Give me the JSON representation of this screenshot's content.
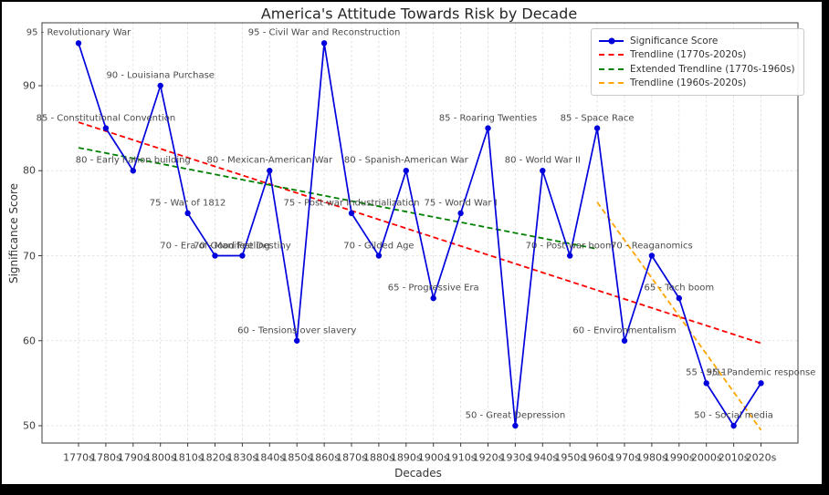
{
  "page": {
    "background": "#000000",
    "figure_background": "#ffffff"
  },
  "chart_data": {
    "type": "line",
    "title": "America's Attitude Towards Risk by Decade",
    "xlabel": "Decades",
    "ylabel": "Significance Score",
    "categories": [
      "1770s",
      "1780s",
      "1790s",
      "1800s",
      "1810s",
      "1820s",
      "1830s",
      "1840s",
      "1850s",
      "1860s",
      "1870s",
      "1880s",
      "1890s",
      "1900s",
      "1910s",
      "1920s",
      "1930s",
      "1940s",
      "1950s",
      "1960s",
      "1970s",
      "1980s",
      "1990s",
      "2000s",
      "2010s",
      "2020s"
    ],
    "y_ticks": [
      50,
      60,
      70,
      80,
      90
    ],
    "ylim": [
      47.7,
      97.4
    ],
    "grid": true,
    "series": [
      {
        "name": "Significance Score",
        "color": "#0000dd",
        "marker": "circle",
        "values": [
          95,
          85,
          80,
          90,
          75,
          70,
          70,
          80,
          60,
          95,
          75,
          70,
          80,
          65,
          75,
          85,
          50,
          80,
          70,
          85,
          60,
          70,
          65,
          55,
          50,
          55
        ]
      }
    ],
    "annotations": [
      "95 - Revolutionary War",
      "85 - Constitutional Convention",
      "80 - Early nation building",
      "90 - Louisiana Purchase",
      "75 - War of 1812",
      "70 - Era of Good Feeling",
      "70 - Manifest Destiny",
      "80 - Mexican-American War",
      "60 - Tensions over slavery",
      "95 - Civil War and Reconstruction",
      "75 - Post-war Industrialization",
      "70 - Gilded Age",
      "80 - Spanish-American War",
      "65 - Progressive Era",
      "75 - World War I",
      "85 - Roaring Twenties",
      "50 - Great Depression",
      "80 - World War II",
      "70 - Post-war boom",
      "85 - Space Race",
      "60 - Environmentalism",
      "70 - Reaganomics",
      "65 - Tech boom",
      "55 - 9/11",
      "50 - Social media",
      "55 - Pandemic response"
    ],
    "trendlines": [
      {
        "name": "Trendline (1770s-2020s)",
        "color": "#ff0000",
        "from_decade": "1770s",
        "from_value": 85.7,
        "to_decade": "2020s",
        "to_value": 59.7
      },
      {
        "name": "Extended Trendline (1770s-1960s)",
        "color": "#008000",
        "from_decade": "1770s",
        "from_value": 82.7,
        "to_decade": "1960s",
        "to_value": 70.8
      },
      {
        "name": "Trendline (1960s-2020s)",
        "color": "#ffa500",
        "from_decade": "1960s",
        "from_value": 76.3,
        "to_decade": "2020s",
        "to_value": 49.5
      }
    ],
    "legend": {
      "position": "upper right",
      "entries": [
        {
          "label": "Significance Score",
          "style": "line-marker",
          "color": "#0000dd"
        },
        {
          "label": "Trendline (1770s-2020s)",
          "style": "dashed",
          "color": "#ff0000"
        },
        {
          "label": "Extended Trendline (1770s-1960s)",
          "style": "dashed",
          "color": "#008000"
        },
        {
          "label": "Trendline (1960s-2020s)",
          "style": "dashed",
          "color": "#ffa500"
        }
      ]
    }
  }
}
